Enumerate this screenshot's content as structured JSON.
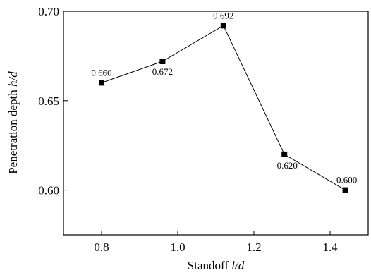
{
  "chart_data": {
    "type": "line",
    "xlabel": {
      "prefix": "Standoff ",
      "variable": "l/d"
    },
    "ylabel": {
      "prefix": "Penetration depth ",
      "variable": "h/d"
    },
    "xlim": [
      0.7,
      1.5
    ],
    "ylim": [
      0.575,
      0.7
    ],
    "xticks": [
      0.8,
      1.0,
      1.2,
      1.4
    ],
    "xtick_labels": [
      "0.8",
      "1.0",
      "1.2",
      "1.4"
    ],
    "yticks": [
      0.6,
      0.65,
      0.7
    ],
    "ytick_labels": [
      "0.60",
      "0.65",
      "0.70"
    ],
    "grid": false,
    "series": [
      {
        "marker": "square",
        "color": "#000000",
        "x": [
          0.8,
          0.96,
          1.12,
          1.28,
          1.44
        ],
        "y": [
          0.66,
          0.672,
          0.692,
          0.62,
          0.6
        ],
        "labels": [
          "0.660",
          "0.672",
          "0.692",
          "0.620",
          "0.600"
        ]
      }
    ]
  }
}
